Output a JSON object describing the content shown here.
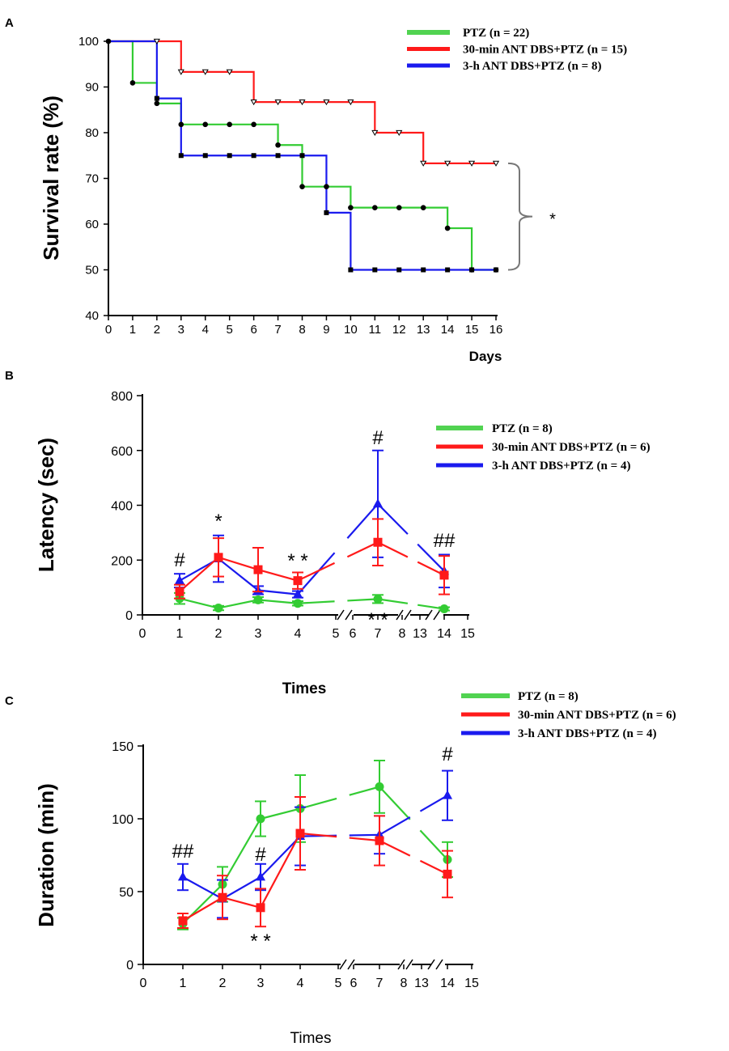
{
  "colors": {
    "ptz": "#33cc33",
    "ant30": "#ff1a1a",
    "ant3h": "#1a1aee",
    "bracket": "#777777"
  },
  "panels": {
    "a": "A",
    "b": "B",
    "c": "C"
  },
  "chart_data": [
    {
      "type": "step",
      "title": "",
      "xlabel": "Days",
      "ylabel": "Survival rate (%)",
      "xlim": [
        0,
        16
      ],
      "ylim": [
        40,
        100
      ],
      "xticks": [
        "0",
        "1",
        "2",
        "3",
        "4",
        "5",
        "6",
        "7",
        "8",
        "9",
        "10",
        "11",
        "12",
        "13",
        "14",
        "15",
        "16"
      ],
      "yticks": [
        "40",
        "50",
        "60",
        "70",
        "80",
        "90",
        "100"
      ],
      "legend": [
        "PTZ (n = 22)",
        "30-min ANT DBS+PTZ (n = 15)",
        "3-h ANT DBS+PTZ (n = 8)"
      ],
      "series": [
        {
          "name": "PTZ (n = 22)",
          "color_key": "ptz",
          "marker": "circle",
          "steps": [
            [
              0,
              100
            ],
            [
              1,
              90.9
            ],
            [
              2,
              86.4
            ],
            [
              3,
              81.8
            ],
            [
              7,
              77.3
            ],
            [
              8,
              68.2
            ],
            [
              10,
              63.6
            ],
            [
              14,
              59.1
            ],
            [
              15,
              50
            ],
            [
              16,
              50
            ]
          ],
          "markers": [
            [
              1,
              90.9
            ],
            [
              2,
              86.4
            ],
            [
              3,
              81.8
            ],
            [
              4,
              81.8
            ],
            [
              5,
              81.8
            ],
            [
              6,
              81.8
            ],
            [
              7,
              77.3
            ],
            [
              8,
              68.2
            ],
            [
              9,
              68.2
            ],
            [
              10,
              63.6
            ],
            [
              11,
              63.6
            ],
            [
              12,
              63.6
            ],
            [
              13,
              63.6
            ],
            [
              14,
              59.1
            ],
            [
              15,
              50
            ],
            [
              16,
              50
            ]
          ]
        },
        {
          "name": "30-min ANT DBS+PTZ (n = 15)",
          "color_key": "ant30",
          "marker": "triangle-down",
          "steps": [
            [
              0,
              100
            ],
            [
              3,
              93.3
            ],
            [
              6,
              86.7
            ],
            [
              11,
              80
            ],
            [
              13,
              73.3
            ],
            [
              16,
              73.3
            ]
          ],
          "markers": [
            [
              2,
              100
            ],
            [
              3,
              93.3
            ],
            [
              4,
              93.3
            ],
            [
              5,
              93.3
            ],
            [
              6,
              86.7
            ],
            [
              7,
              86.7
            ],
            [
              8,
              86.7
            ],
            [
              9,
              86.7
            ],
            [
              10,
              86.7
            ],
            [
              11,
              80
            ],
            [
              12,
              80
            ],
            [
              13,
              73.3
            ],
            [
              14,
              73.3
            ],
            [
              15,
              73.3
            ],
            [
              16,
              73.3
            ]
          ]
        },
        {
          "name": "3-h ANT DBS+PTZ (n = 8)",
          "color_key": "ant3h",
          "marker": "square",
          "steps": [
            [
              0,
              100
            ],
            [
              2,
              87.5
            ],
            [
              3,
              75
            ],
            [
              9,
              62.5
            ],
            [
              10,
              50
            ],
            [
              16,
              50
            ]
          ],
          "markers": [
            [
              2,
              87.5
            ],
            [
              3,
              75
            ],
            [
              4,
              75
            ],
            [
              5,
              75
            ],
            [
              6,
              75
            ],
            [
              7,
              75
            ],
            [
              8,
              75
            ],
            [
              9,
              62.5
            ],
            [
              10,
              50
            ],
            [
              11,
              50
            ],
            [
              12,
              50
            ],
            [
              13,
              50
            ],
            [
              14,
              50
            ],
            [
              15,
              50
            ],
            [
              16,
              50
            ]
          ]
        }
      ],
      "start_marker": [
        0,
        100
      ],
      "annotation": "*"
    },
    {
      "type": "line",
      "xlabel": "Times",
      "ylabel": "Latency (sec)",
      "ylim": [
        0,
        800
      ],
      "yticks": [
        "0",
        "200",
        "400",
        "600",
        "800"
      ],
      "xticks": [
        "0",
        "1",
        "2",
        "3",
        "4",
        "5",
        "6",
        "7",
        "8",
        "13",
        "14",
        "15"
      ],
      "legend": [
        "PTZ (n = 8)",
        "30-min ANT DBS+PTZ (n = 6)",
        "3-h ANT DBS+PTZ (n = 4)"
      ],
      "categories": [
        "1",
        "2",
        "3",
        "4",
        "7",
        "14"
      ],
      "series": [
        {
          "name": "PTZ (n = 8)",
          "color_key": "ptz",
          "marker": "circle",
          "values": [
            60,
            25,
            55,
            42,
            58,
            22
          ],
          "err": [
            20,
            8,
            10,
            8,
            15,
            6
          ]
        },
        {
          "name": "30-min ANT DBS+PTZ (n = 6)",
          "color_key": "ant30",
          "marker": "square",
          "values": [
            85,
            210,
            165,
            125,
            265,
            145
          ],
          "err": [
            25,
            70,
            80,
            30,
            85,
            70
          ]
        },
        {
          "name": "3-h ANT DBS+PTZ (n = 4)",
          "color_key": "ant3h",
          "marker": "triangle",
          "values": [
            125,
            205,
            90,
            75,
            405,
            160
          ],
          "err": [
            25,
            85,
            15,
            12,
            195,
            60
          ]
        }
      ],
      "annotations": [
        {
          "label": "#",
          "category": "1"
        },
        {
          "label": "*",
          "category": "2"
        },
        {
          "label": "* *",
          "category": "4"
        },
        {
          "label": "#",
          "category": "7"
        },
        {
          "label": "* *",
          "category": "7"
        },
        {
          "label": "##",
          "category": "14"
        }
      ]
    },
    {
      "type": "line",
      "xlabel": "Times",
      "ylabel": "Duration (min)",
      "ylim": [
        0,
        150
      ],
      "yticks": [
        "0",
        "50",
        "100",
        "150"
      ],
      "xticks": [
        "0",
        "1",
        "2",
        "3",
        "4",
        "5",
        "6",
        "7",
        "8",
        "13",
        "14",
        "15"
      ],
      "legend": [
        "PTZ (n = 8)",
        "30-min ANT DBS+PTZ (n = 6)",
        "3-h ANT DBS+PTZ (n = 4)"
      ],
      "categories": [
        "1",
        "2",
        "3",
        "4",
        "7",
        "14"
      ],
      "series": [
        {
          "name": "PTZ (n = 8)",
          "color_key": "ptz",
          "marker": "circle",
          "values": [
            28,
            55,
            100,
            107,
            122,
            72
          ],
          "err": [
            4,
            12,
            12,
            23,
            18,
            12
          ]
        },
        {
          "name": "30-min ANT DBS+PTZ (n = 6)",
          "color_key": "ant30",
          "marker": "square",
          "values": [
            30,
            46,
            39,
            90,
            85,
            62
          ],
          "err": [
            5,
            15,
            13,
            25,
            17,
            16
          ]
        },
        {
          "name": "3-h ANT DBS+PTZ (n = 4)",
          "color_key": "ant3h",
          "marker": "triangle",
          "values": [
            60,
            45,
            60,
            88,
            89,
            116
          ],
          "err": [
            9,
            13,
            9,
            20,
            13,
            17
          ]
        }
      ],
      "annotations": [
        {
          "label": "##",
          "category": "1"
        },
        {
          "label": "#",
          "category": "3"
        },
        {
          "label": "* *",
          "category": "3"
        },
        {
          "label": "#",
          "category": "14"
        }
      ]
    }
  ]
}
